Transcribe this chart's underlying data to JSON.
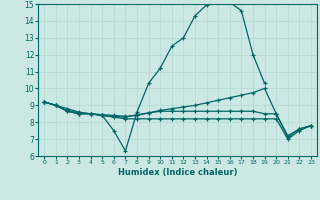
{
  "xlabel": "Humidex (Indice chaleur)",
  "ylabel": "",
  "background_color": "#cce8e4",
  "grid_color": "#b0d8d0",
  "line_color": "#006666",
  "xlim": [
    -0.5,
    23.5
  ],
  "ylim": [
    6,
    15
  ],
  "xticks": [
    0,
    1,
    2,
    3,
    4,
    5,
    6,
    7,
    8,
    9,
    10,
    11,
    12,
    13,
    14,
    15,
    16,
    17,
    18,
    19,
    20,
    21,
    22,
    23
  ],
  "yticks": [
    6,
    7,
    8,
    9,
    10,
    11,
    12,
    13,
    14,
    15
  ],
  "series": [
    {
      "x": [
        0,
        1,
        2,
        3,
        4,
        5,
        6,
        7,
        8,
        9,
        10,
        11,
        12,
        13,
        14,
        15,
        16,
        17,
        18,
        19
      ],
      "y": [
        9.2,
        9.0,
        8.8,
        8.6,
        8.5,
        8.4,
        7.5,
        6.3,
        8.6,
        10.3,
        11.2,
        12.5,
        13.0,
        14.3,
        14.95,
        15.25,
        15.1,
        14.6,
        12.0,
        10.3
      ]
    },
    {
      "x": [
        0,
        1,
        2,
        3,
        4,
        5,
        6,
        7,
        8,
        9,
        10,
        11,
        12,
        13,
        14,
        15,
        16,
        17,
        18,
        19,
        20,
        21,
        22,
        23
      ],
      "y": [
        9.2,
        9.0,
        8.7,
        8.55,
        8.5,
        8.45,
        8.4,
        8.35,
        8.4,
        8.55,
        8.7,
        8.8,
        8.9,
        9.0,
        9.15,
        9.3,
        9.45,
        9.6,
        9.75,
        10.0,
        8.5,
        7.1,
        7.6,
        7.8
      ]
    },
    {
      "x": [
        0,
        1,
        2,
        3,
        4,
        5,
        6,
        7,
        8,
        9,
        10,
        11,
        12,
        13,
        14,
        15,
        16,
        17,
        18,
        19,
        20,
        21,
        22,
        23
      ],
      "y": [
        9.2,
        9.0,
        8.65,
        8.5,
        8.5,
        8.4,
        8.3,
        8.2,
        8.2,
        8.2,
        8.2,
        8.2,
        8.2,
        8.2,
        8.2,
        8.2,
        8.2,
        8.2,
        8.2,
        8.2,
        8.2,
        7.0,
        7.5,
        7.8
      ]
    },
    {
      "x": [
        0,
        1,
        2,
        3,
        4,
        5,
        6,
        7,
        8,
        9,
        10,
        11,
        12,
        13,
        14,
        15,
        16,
        17,
        18,
        19,
        20,
        21,
        22,
        23
      ],
      "y": [
        9.2,
        9.0,
        8.65,
        8.5,
        8.5,
        8.4,
        8.35,
        8.3,
        8.45,
        8.55,
        8.65,
        8.65,
        8.65,
        8.65,
        8.65,
        8.65,
        8.65,
        8.65,
        8.65,
        8.5,
        8.5,
        7.2,
        7.6,
        7.8
      ]
    }
  ]
}
